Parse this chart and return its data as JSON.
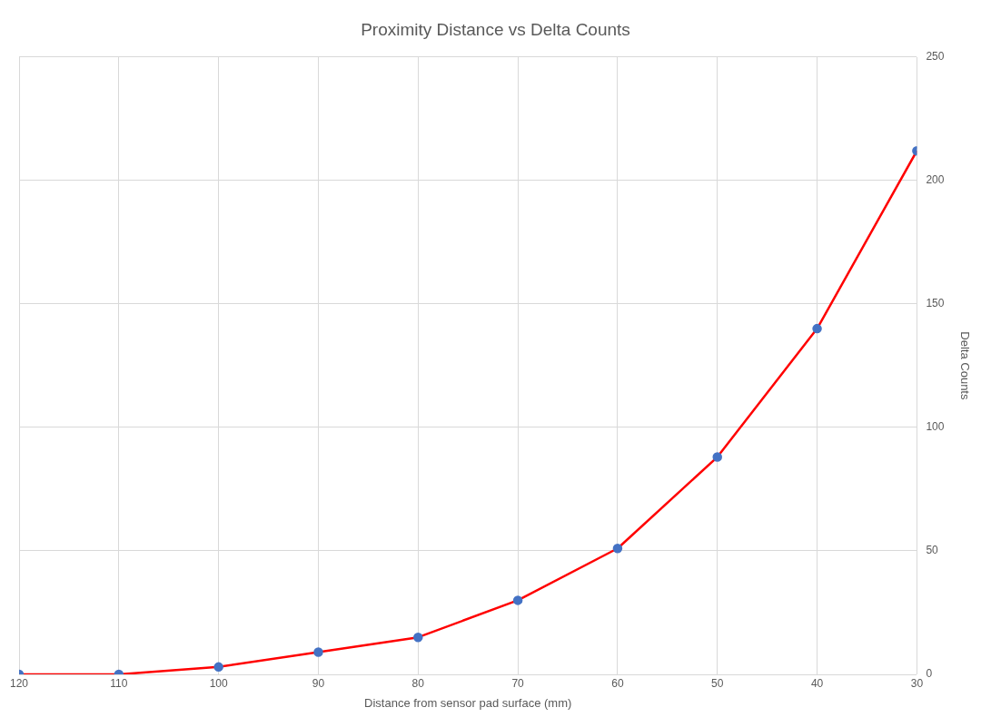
{
  "chart_data": {
    "type": "line",
    "title": "Proximity Distance vs Delta Counts",
    "xlabel": "Distance from sensor pad surface (mm)",
    "ylabel": "Delta Counts",
    "x": [
      120,
      110,
      100,
      90,
      80,
      70,
      60,
      50,
      40,
      30
    ],
    "series": [
      {
        "color": "#ff0000",
        "colors": [
          "#4472c4",
          "#4472c4",
          "#4472c4",
          "#4472c4",
          "#4472c4",
          "#4472c4",
          "#4472c4",
          "#4472c4",
          "#4472c4",
          "#4472c4"
        ],
        "values": [
          0,
          0,
          3,
          9,
          15,
          30,
          51,
          88,
          140,
          212
        ]
      }
    ],
    "xlim": [
      120,
      30
    ],
    "xticks": [
      120,
      110,
      100,
      90,
      80,
      70,
      60,
      50,
      40,
      30
    ],
    "ylim": [
      0,
      250
    ],
    "yticks": [
      0,
      50,
      100,
      150,
      200,
      250
    ],
    "grid": true,
    "marker": "circle",
    "line_style": "solid"
  }
}
